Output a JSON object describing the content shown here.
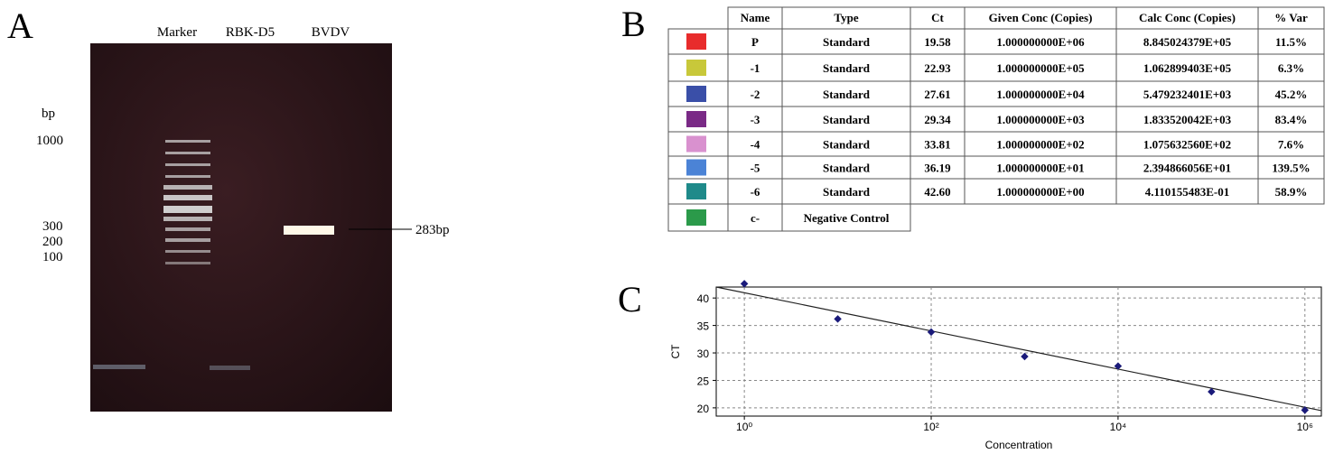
{
  "panels": {
    "a": "A",
    "b": "B",
    "c": "C"
  },
  "gel": {
    "lanes": [
      "Marker",
      "RBK-D5",
      "BVDV"
    ],
    "unit": "bp",
    "ladder": [
      "1000",
      "300",
      "200",
      "100"
    ],
    "band_label": "283bp"
  },
  "table": {
    "header": [
      "Name",
      "Type",
      "Ct",
      "Given Conc (Copies)",
      "Calc Conc (Copies)",
      "% Var"
    ],
    "swatches": [
      "#e82c2c",
      "#c8c83a",
      "#3a4fa8",
      "#7a2a86",
      "#d991cf",
      "#4b83d6",
      "#1f8a8a",
      "#2b9a4a"
    ],
    "rows": [
      [
        "P",
        "Standard",
        "19.58",
        "1.000000000E+06",
        "8.845024379E+05",
        "11.5%"
      ],
      [
        "-1",
        "Standard",
        "22.93",
        "1.000000000E+05",
        "1.062899403E+05",
        "6.3%"
      ],
      [
        "-2",
        "Standard",
        "27.61",
        "1.000000000E+04",
        "5.479232401E+03",
        "45.2%"
      ],
      [
        "-3",
        "Standard",
        "29.34",
        "1.000000000E+03",
        "1.833520042E+03",
        "83.4%"
      ],
      [
        "-4",
        "Standard",
        "33.81",
        "1.000000000E+02",
        "1.075632560E+02",
        "7.6%"
      ],
      [
        "-5",
        "Standard",
        "36.19",
        "1.000000000E+01",
        "2.394866056E+01",
        "139.5%"
      ],
      [
        "-6",
        "Standard",
        "42.60",
        "1.000000000E+00",
        "4.110155483E-01",
        "58.9%"
      ],
      [
        "c-",
        "Negative Control"
      ]
    ]
  },
  "chart_data": {
    "type": "scatter",
    "x_label": "Concentration",
    "y_label": "CT",
    "x": [
      1,
      10,
      100,
      1000,
      10000,
      100000,
      1000000
    ],
    "values": [
      42.6,
      36.19,
      33.81,
      29.34,
      27.61,
      22.93,
      19.58
    ],
    "color": "#1a1a7a",
    "trendline": {
      "x": [
        0.5,
        1500000
      ],
      "values": [
        42,
        19.5
      ],
      "color": "#222222"
    },
    "x_log": true,
    "xlim": [
      0.5,
      1500000
    ],
    "xticks": [
      {
        "value": 1,
        "label": "10⁰"
      },
      {
        "value": 100,
        "label": "10²"
      },
      {
        "value": 10000,
        "label": "10⁴"
      },
      {
        "value": 1000000,
        "label": "10⁶"
      }
    ],
    "ylim": [
      18.5,
      42
    ],
    "yticks": [
      20,
      25,
      30,
      35,
      40
    ],
    "grid": true
  }
}
